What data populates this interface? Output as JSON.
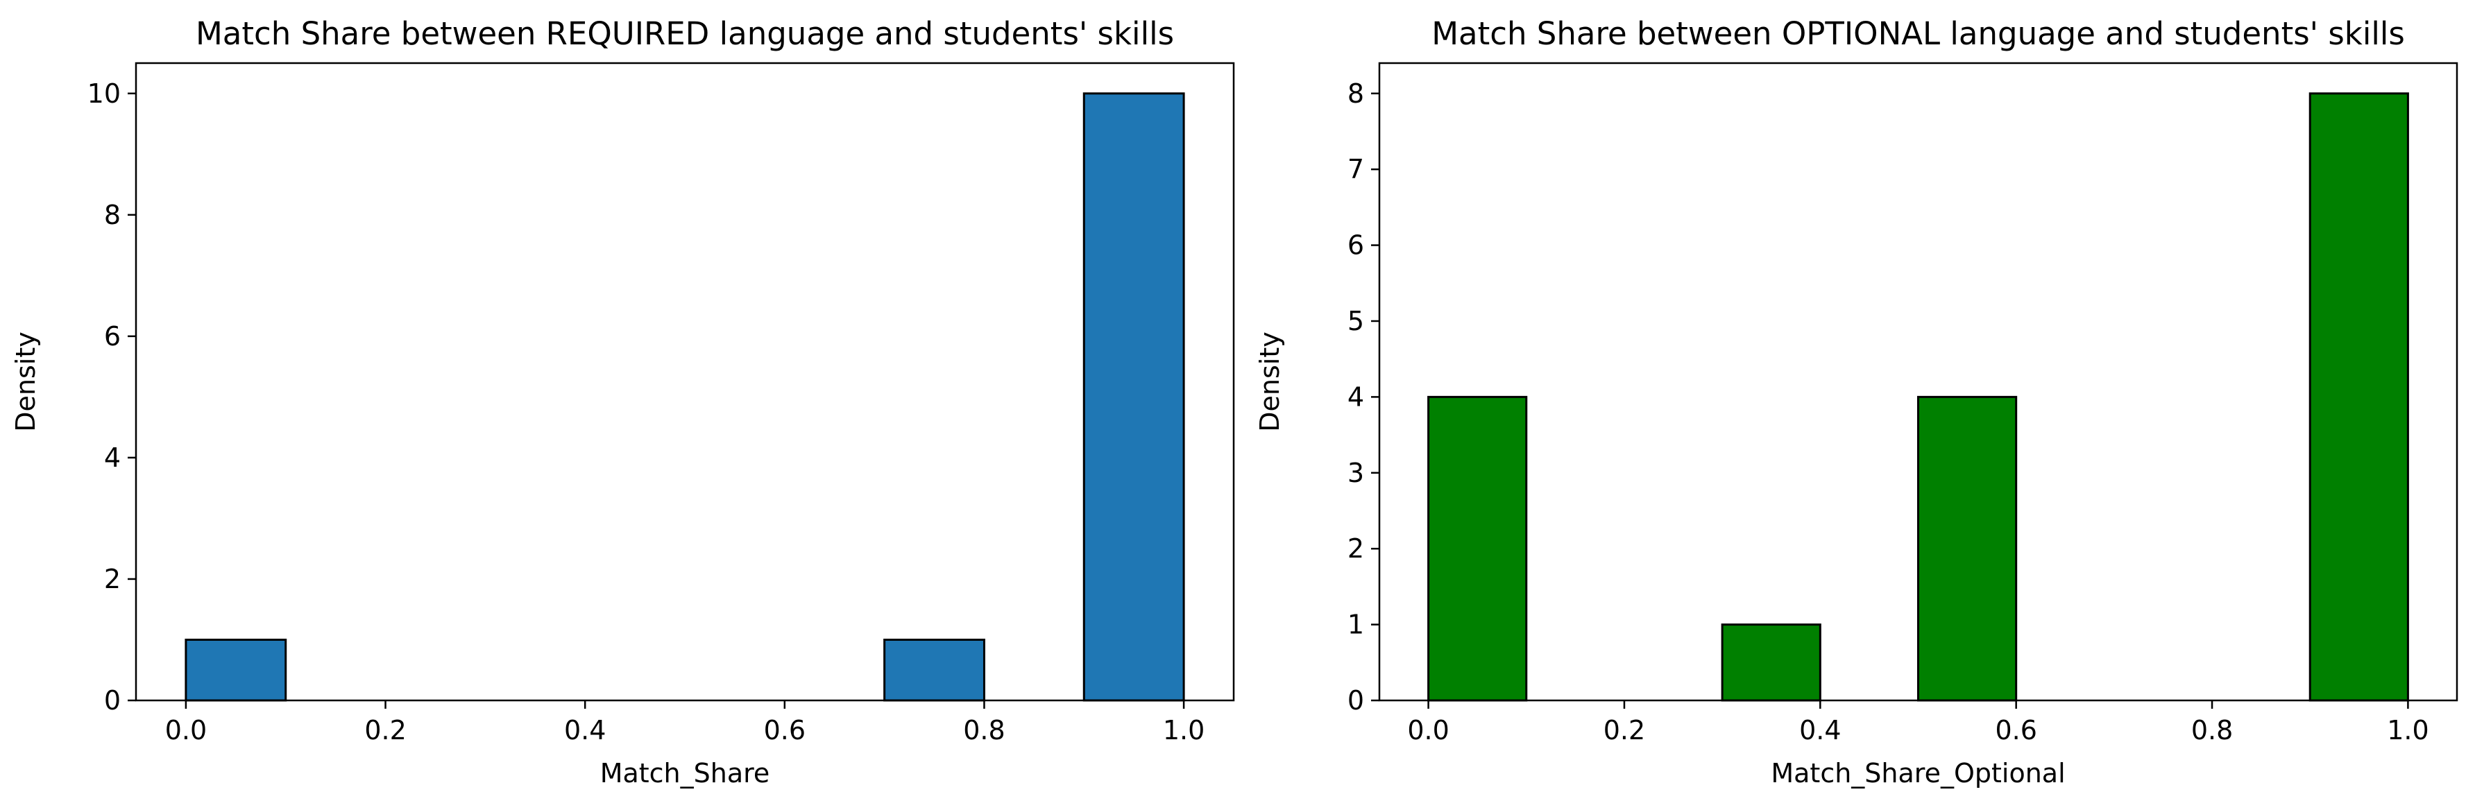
{
  "chart_data": [
    {
      "type": "bar",
      "title": "Match Share between REQUIRED language and students' skills",
      "xlabel": "Match_Share",
      "ylabel": "Density",
      "bin_edges": [
        0.0,
        0.1,
        0.2,
        0.3,
        0.4,
        0.5,
        0.6,
        0.7,
        0.8,
        0.9,
        1.0
      ],
      "values": [
        1,
        0,
        0,
        0,
        0,
        0,
        0,
        1,
        0,
        10
      ],
      "xlim": [
        -0.05,
        1.05
      ],
      "ylim": [
        0,
        10.5
      ],
      "xticks": [
        "0.0",
        "0.2",
        "0.4",
        "0.6",
        "0.8",
        "1.0"
      ],
      "yticks": [
        "0",
        "2",
        "4",
        "6",
        "8",
        "10"
      ],
      "bar_color": "#1f77b4",
      "edge_color": "#000000",
      "grid": false
    },
    {
      "type": "bar",
      "title": "Match Share between OPTIONAL language and students' skills",
      "xlabel": "Match_Share_Optional",
      "ylabel": "Density",
      "bin_edges": [
        0.0,
        0.1,
        0.2,
        0.3,
        0.4,
        0.5,
        0.6,
        0.7,
        0.8,
        0.9,
        1.0
      ],
      "values": [
        4,
        0,
        0,
        1,
        0,
        4,
        0,
        0,
        0,
        8
      ],
      "xlim": [
        -0.05,
        1.05
      ],
      "ylim": [
        0,
        8.4
      ],
      "xticks": [
        "0.0",
        "0.2",
        "0.4",
        "0.6",
        "0.8",
        "1.0"
      ],
      "yticks": [
        "0",
        "1",
        "2",
        "3",
        "4",
        "5",
        "6",
        "7",
        "8"
      ],
      "bar_color": "#008000",
      "edge_color": "#000000",
      "grid": false
    }
  ]
}
